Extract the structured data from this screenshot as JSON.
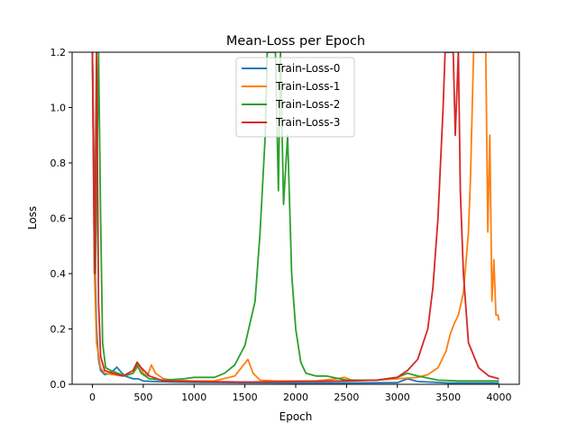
{
  "chart_data": {
    "type": "line",
    "title": "Mean-Loss per Epoch",
    "xlabel": "Epoch",
    "ylabel": "Loss",
    "xlim": [
      -200,
      4200
    ],
    "ylim": [
      0,
      1.2
    ],
    "xticks": [
      0,
      500,
      1000,
      1500,
      2000,
      2500,
      3000,
      3500,
      4000
    ],
    "xtick_labels": [
      "0",
      "500",
      "1000",
      "1500",
      "2000",
      "2500",
      "3000",
      "3500",
      "4000"
    ],
    "yticks": [
      0.0,
      0.2,
      0.4,
      0.6,
      0.8,
      1.0,
      1.2
    ],
    "ytick_labels": [
      "0.0",
      "0.2",
      "0.4",
      "0.6",
      "0.8",
      "1.0",
      "1.2"
    ],
    "grid": false,
    "legend_position": "upper center",
    "series": [
      {
        "name": "Train-Loss-0",
        "color": "#1f77b4",
        "points": [
          [
            0,
            1.2
          ],
          [
            20,
            0.5
          ],
          [
            40,
            0.2
          ],
          [
            60,
            0.09
          ],
          [
            80,
            0.05
          ],
          [
            120,
            0.035
          ],
          [
            180,
            0.04
          ],
          [
            240,
            0.062
          ],
          [
            280,
            0.045
          ],
          [
            320,
            0.03
          ],
          [
            400,
            0.02
          ],
          [
            450,
            0.02
          ],
          [
            500,
            0.012
          ],
          [
            600,
            0.01
          ],
          [
            800,
            0.008
          ],
          [
            1000,
            0.007
          ],
          [
            1500,
            0.006
          ],
          [
            2000,
            0.005
          ],
          [
            2500,
            0.005
          ],
          [
            3000,
            0.006
          ],
          [
            3100,
            0.02
          ],
          [
            3200,
            0.01
          ],
          [
            3500,
            0.005
          ],
          [
            4000,
            0.005
          ]
        ]
      },
      {
        "name": "Train-Loss-1",
        "color": "#ff7f0e",
        "points": [
          [
            0,
            1.2
          ],
          [
            20,
            0.4
          ],
          [
            40,
            0.15
          ],
          [
            80,
            0.06
          ],
          [
            120,
            0.04
          ],
          [
            200,
            0.035
          ],
          [
            300,
            0.03
          ],
          [
            400,
            0.04
          ],
          [
            460,
            0.07
          ],
          [
            500,
            0.04
          ],
          [
            540,
            0.03
          ],
          [
            580,
            0.07
          ],
          [
            620,
            0.04
          ],
          [
            700,
            0.02
          ],
          [
            800,
            0.015
          ],
          [
            1000,
            0.012
          ],
          [
            1200,
            0.012
          ],
          [
            1400,
            0.03
          ],
          [
            1530,
            0.09
          ],
          [
            1580,
            0.04
          ],
          [
            1650,
            0.015
          ],
          [
            1800,
            0.012
          ],
          [
            2000,
            0.012
          ],
          [
            2200,
            0.012
          ],
          [
            2400,
            0.02
          ],
          [
            2480,
            0.025
          ],
          [
            2550,
            0.015
          ],
          [
            2800,
            0.015
          ],
          [
            3000,
            0.02
          ],
          [
            3200,
            0.025
          ],
          [
            3300,
            0.035
          ],
          [
            3400,
            0.06
          ],
          [
            3480,
            0.12
          ],
          [
            3520,
            0.18
          ],
          [
            3560,
            0.22
          ],
          [
            3600,
            0.25
          ],
          [
            3650,
            0.33
          ],
          [
            3700,
            0.55
          ],
          [
            3720,
            0.75
          ],
          [
            3750,
            1.2
          ],
          [
            3870,
            1.2
          ],
          [
            3890,
            0.55
          ],
          [
            3910,
            0.9
          ],
          [
            3930,
            0.3
          ],
          [
            3950,
            0.45
          ],
          [
            3970,
            0.25
          ],
          [
            3990,
            0.25
          ],
          [
            4000,
            0.23
          ]
        ]
      },
      {
        "name": "Train-Loss-2",
        "color": "#2ca02c",
        "points": [
          [
            0,
            1.2
          ],
          [
            30,
            0.4
          ],
          [
            60,
            1.2
          ],
          [
            80,
            0.6
          ],
          [
            100,
            0.15
          ],
          [
            130,
            0.06
          ],
          [
            180,
            0.05
          ],
          [
            250,
            0.04
          ],
          [
            320,
            0.03
          ],
          [
            400,
            0.04
          ],
          [
            440,
            0.07
          ],
          [
            480,
            0.04
          ],
          [
            560,
            0.02
          ],
          [
            700,
            0.015
          ],
          [
            900,
            0.02
          ],
          [
            1000,
            0.025
          ],
          [
            1200,
            0.025
          ],
          [
            1300,
            0.04
          ],
          [
            1400,
            0.07
          ],
          [
            1500,
            0.14
          ],
          [
            1600,
            0.3
          ],
          [
            1650,
            0.55
          ],
          [
            1700,
            0.9
          ],
          [
            1720,
            1.2
          ],
          [
            1800,
            1.2
          ],
          [
            1830,
            0.7
          ],
          [
            1850,
            1.2
          ],
          [
            1880,
            0.65
          ],
          [
            1920,
            0.9
          ],
          [
            1960,
            0.4
          ],
          [
            2000,
            0.2
          ],
          [
            2050,
            0.08
          ],
          [
            2100,
            0.04
          ],
          [
            2200,
            0.03
          ],
          [
            2300,
            0.03
          ],
          [
            2500,
            0.015
          ],
          [
            2800,
            0.015
          ],
          [
            3000,
            0.025
          ],
          [
            3100,
            0.04
          ],
          [
            3200,
            0.03
          ],
          [
            3400,
            0.015
          ],
          [
            3600,
            0.012
          ],
          [
            4000,
            0.012
          ]
        ]
      },
      {
        "name": "Train-Loss-3",
        "color": "#d62728",
        "points": [
          [
            0,
            1.2
          ],
          [
            20,
            0.4
          ],
          [
            40,
            1.2
          ],
          [
            60,
            0.3
          ],
          [
            80,
            0.1
          ],
          [
            120,
            0.05
          ],
          [
            200,
            0.04
          ],
          [
            300,
            0.03
          ],
          [
            400,
            0.05
          ],
          [
            440,
            0.08
          ],
          [
            480,
            0.06
          ],
          [
            560,
            0.03
          ],
          [
            700,
            0.012
          ],
          [
            1000,
            0.01
          ],
          [
            1500,
            0.008
          ],
          [
            2000,
            0.01
          ],
          [
            2500,
            0.012
          ],
          [
            2800,
            0.015
          ],
          [
            3000,
            0.025
          ],
          [
            3100,
            0.05
          ],
          [
            3200,
            0.09
          ],
          [
            3300,
            0.2
          ],
          [
            3350,
            0.35
          ],
          [
            3400,
            0.6
          ],
          [
            3450,
            1.0
          ],
          [
            3470,
            1.2
          ],
          [
            3550,
            1.2
          ],
          [
            3570,
            0.9
          ],
          [
            3600,
            1.2
          ],
          [
            3620,
            0.7
          ],
          [
            3650,
            0.4
          ],
          [
            3700,
            0.15
          ],
          [
            3800,
            0.06
          ],
          [
            3900,
            0.03
          ],
          [
            4000,
            0.02
          ]
        ]
      }
    ]
  }
}
